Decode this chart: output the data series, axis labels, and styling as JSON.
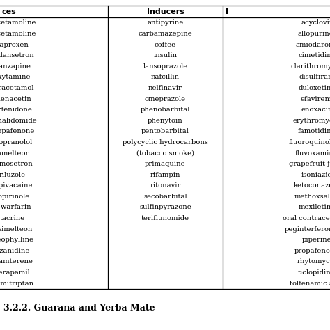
{
  "col1_header": "ces",
  "col2_header": "Inducers",
  "col3_header": "I",
  "substrates": [
    "nacetamoline",
    "nacetamoline",
    "naproxen",
    "ondansetron",
    "olanzapine",
    "oxytamine",
    "paracetamol",
    "phenacetin",
    "pirfenidone",
    "pomalidomide",
    "propafenone",
    "propranolol",
    "ramelteon",
    "ramosetron",
    "riluzole",
    "ropivacaine",
    "ropirinole",
    "R-warfarin",
    "tacrine",
    "tasimelteon",
    "theophylline",
    "tizanidine",
    "triamterene",
    "verapamil",
    "zolmitriptan"
  ],
  "inducers": [
    "antipyrine",
    "carbamazepine",
    "coffee",
    "insulin",
    "lansoprazole",
    "nafcillin",
    "nelfinavir",
    "omeprazole",
    "phenobarbital",
    "phenytoin",
    "pentobarbital",
    "polycyclic hydrocarbons",
    "(tobacco smoke)",
    "primaquine",
    "rifampin",
    "ritonavir",
    "secobarbital",
    "sulfinpyrazone",
    "teriflunomide",
    "",
    "",
    "",
    "",
    "",
    ""
  ],
  "inhibitors": [
    "acyclovir",
    "allopurinol",
    "amiodarone",
    "cimetidine",
    "clarithromycin",
    "disulfiram",
    "duloxetine",
    "efavirenz",
    "enoxacin",
    "erythromycin",
    "famotidine",
    "fluoroquinolone",
    "fluvoxamine",
    "grapefruit juice",
    "isoniazid",
    "ketoconazole",
    "methoxsalen",
    "mexiletine",
    "oral contraceptives",
    "peginterferon-alfa",
    "piperine",
    "propafenone",
    "rhytomycin",
    "ticlopidine",
    "tolfenamic acid"
  ],
  "footer_text": "3.2.2. Guarana and Yerba Mate",
  "bg_color": "#ffffff",
  "text_color": "#000000",
  "header_color": "#000000",
  "line_color": "#000000",
  "font_size": 7.2,
  "header_font_size": 8.0,
  "footer_font_size": 9.0
}
